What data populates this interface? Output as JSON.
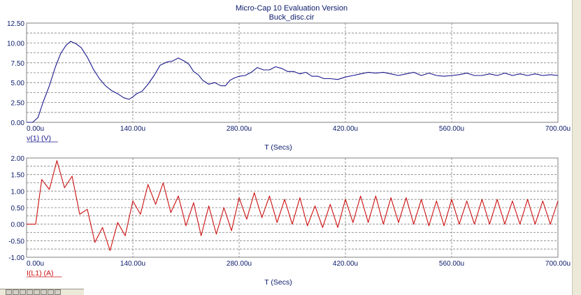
{
  "window": {
    "title": "Micro-Cap 10 Evaluation Version",
    "file_name": "Buck_disc.cir"
  },
  "colors": {
    "voltage_trace": "#1a1a8c",
    "current_trace": "#cc1111",
    "axis_text": "#0a1a6a",
    "grid": "#808080",
    "background": "#ffffff"
  },
  "chart_data": [
    {
      "type": "line",
      "title": "",
      "xlabel": "T (Secs)",
      "ylabel": "",
      "xlim": [
        0,
        700
      ],
      "ylim": [
        0,
        12.5
      ],
      "x_unit": "u",
      "x_ticks": [
        0,
        140,
        280,
        420,
        560,
        700
      ],
      "x_tick_labels": [
        "0.00u",
        "140.00u",
        "280.00u",
        "420.00u",
        "560.00u",
        "700.00u"
      ],
      "y_ticks": [
        0,
        2.5,
        5,
        7.5,
        10,
        12.5
      ],
      "y_tick_labels": [
        "0.00",
        "2.50",
        "5.00",
        "7.50",
        "10.00",
        "12.50"
      ],
      "grid": true,
      "series": [
        {
          "name": "v(1) (V)",
          "color": "#1a1a8c",
          "x": [
            0,
            8,
            15,
            22,
            30,
            38,
            45,
            52,
            58,
            65,
            72,
            80,
            88,
            96,
            104,
            112,
            120,
            128,
            135,
            140,
            145,
            152,
            160,
            168,
            176,
            185,
            192,
            200,
            208,
            214,
            220,
            226,
            232,
            240,
            248,
            256,
            262,
            268,
            274,
            280,
            288,
            296,
            304,
            312,
            320,
            328,
            336,
            344,
            352,
            360,
            368,
            376,
            384,
            392,
            400,
            410,
            420,
            430,
            440,
            450,
            460,
            470,
            480,
            490,
            500,
            510,
            520,
            530,
            540,
            550,
            560,
            570,
            580,
            590,
            600,
            610,
            620,
            630,
            640,
            650,
            660,
            670,
            680,
            690,
            700
          ],
          "values": [
            0.0,
            0.0,
            0.6,
            2.6,
            4.6,
            7.0,
            8.7,
            9.7,
            10.2,
            9.9,
            9.4,
            8.2,
            6.7,
            5.5,
            4.6,
            4.0,
            3.6,
            3.1,
            2.9,
            3.2,
            3.6,
            3.9,
            4.8,
            5.9,
            7.2,
            7.6,
            7.7,
            8.1,
            7.7,
            7.3,
            6.4,
            6.0,
            5.3,
            4.8,
            5.0,
            4.6,
            4.6,
            5.3,
            5.6,
            5.8,
            5.9,
            6.3,
            6.9,
            6.6,
            6.6,
            7.0,
            6.8,
            6.4,
            6.4,
            6.1,
            6.3,
            5.8,
            5.8,
            5.5,
            5.5,
            5.4,
            5.7,
            5.9,
            6.1,
            6.3,
            6.2,
            6.3,
            6.1,
            5.9,
            6.1,
            6.3,
            5.9,
            6.2,
            5.9,
            5.8,
            5.9,
            6.0,
            6.2,
            5.9,
            5.9,
            6.1,
            5.9,
            6.2,
            5.9,
            6.1,
            5.9,
            6.1,
            5.9,
            6.0,
            5.9
          ]
        }
      ]
    },
    {
      "type": "line",
      "title": "",
      "xlabel": "T (Secs)",
      "ylabel": "",
      "xlim": [
        0,
        700
      ],
      "ylim": [
        -1.0,
        2.0
      ],
      "x_unit": "u",
      "x_ticks": [
        0,
        140,
        280,
        420,
        560,
        700
      ],
      "x_tick_labels": [
        "0.00u",
        "140.00u",
        "280.00u",
        "420.00u",
        "560.00u",
        "700.00u"
      ],
      "y_ticks": [
        -1.0,
        -0.5,
        0,
        0.5,
        1.0,
        1.5,
        2.0
      ],
      "y_tick_labels": [
        "-1.00",
        "-0.50",
        "0.00",
        "0.50",
        "1.00",
        "1.50",
        "2.00"
      ],
      "grid": true,
      "series": [
        {
          "name": "I(L1) (A)",
          "color": "#cc1111",
          "x": [
            0,
            12,
            20,
            30,
            40,
            50,
            60,
            70,
            80,
            90,
            100,
            110,
            120,
            130,
            140,
            150,
            160,
            170,
            180,
            190,
            200,
            210,
            220,
            230,
            240,
            250,
            260,
            270,
            280,
            290,
            300,
            310,
            320,
            330,
            340,
            350,
            360,
            370,
            380,
            390,
            400,
            410,
            420,
            430,
            440,
            450,
            460,
            470,
            480,
            490,
            500,
            510,
            520,
            530,
            540,
            550,
            560,
            570,
            580,
            590,
            600,
            610,
            620,
            630,
            640,
            650,
            660,
            670,
            680,
            690,
            700
          ],
          "values": [
            0.0,
            0.0,
            1.35,
            1.05,
            1.92,
            1.1,
            1.45,
            0.3,
            0.45,
            -0.55,
            -0.1,
            -0.8,
            0.05,
            -0.35,
            0.7,
            0.3,
            1.2,
            0.6,
            1.25,
            0.35,
            0.85,
            -0.05,
            0.65,
            -0.35,
            0.55,
            -0.3,
            0.5,
            -0.2,
            0.8,
            0.15,
            0.95,
            0.2,
            0.85,
            0.05,
            0.75,
            0.0,
            0.8,
            -0.05,
            0.55,
            -0.1,
            0.6,
            -0.1,
            0.75,
            0.05,
            0.85,
            0.05,
            0.85,
            0.0,
            0.8,
            0.05,
            0.8,
            0.0,
            0.75,
            -0.05,
            0.7,
            -0.05,
            0.75,
            0.0,
            0.7,
            0.0,
            0.75,
            0.0,
            0.75,
            0.0,
            0.7,
            0.0,
            0.75,
            0.0,
            0.7,
            0.0,
            0.7
          ]
        }
      ]
    }
  ]
}
